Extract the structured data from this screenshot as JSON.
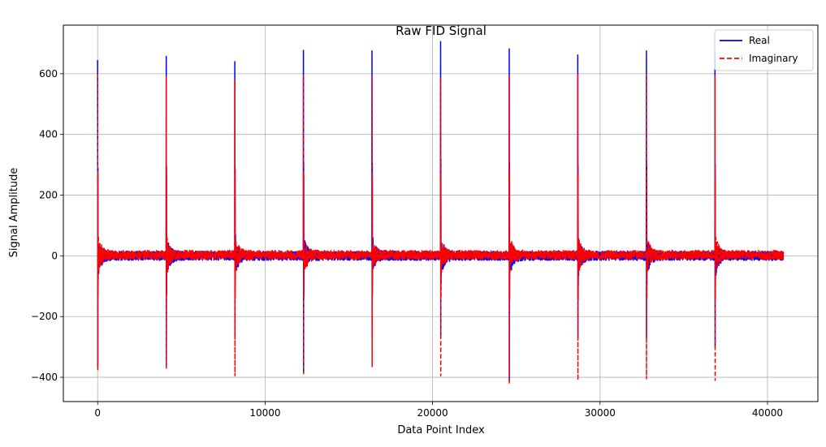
{
  "chart_data": {
    "type": "line",
    "title": "Raw FID Signal",
    "xlabel": "Data Point Index",
    "ylabel": "Signal Amplitude",
    "xlim": [
      -2048,
      43008
    ],
    "ylim": [
      -480,
      760
    ],
    "xticks": [
      0,
      10000,
      20000,
      30000,
      40000
    ],
    "xtick_labels": [
      "0",
      "10000",
      "20000",
      "30000",
      "40000"
    ],
    "yticks": [
      -400,
      -200,
      0,
      200,
      400,
      600
    ],
    "ytick_labels": [
      "−400",
      "−200",
      "0",
      "200",
      "400",
      "600"
    ],
    "grid": true,
    "legend_position": "top-right",
    "n_points": 40960,
    "block_size": 4096,
    "noise_level": 20,
    "series": [
      {
        "name": "Real",
        "color": "#0000ff",
        "linestyle": "solid",
        "block_peaks": [
          645,
          657,
          640,
          677,
          675,
          706,
          682,
          662,
          675,
          672
        ],
        "block_minima": [
          -365,
          -360,
          -270,
          -385,
          -270,
          -270,
          -410,
          -270,
          -270,
          -300
        ]
      },
      {
        "name": "Imaginary",
        "color": "#ff0000",
        "linestyle": "dashed",
        "block_peaks": [
          600,
          590,
          580,
          595,
          592,
          585,
          592,
          600,
          598,
          592
        ],
        "block_minima": [
          -375,
          -370,
          -395,
          -388,
          -365,
          -395,
          -422,
          -410,
          -405,
          -410
        ]
      }
    ]
  }
}
